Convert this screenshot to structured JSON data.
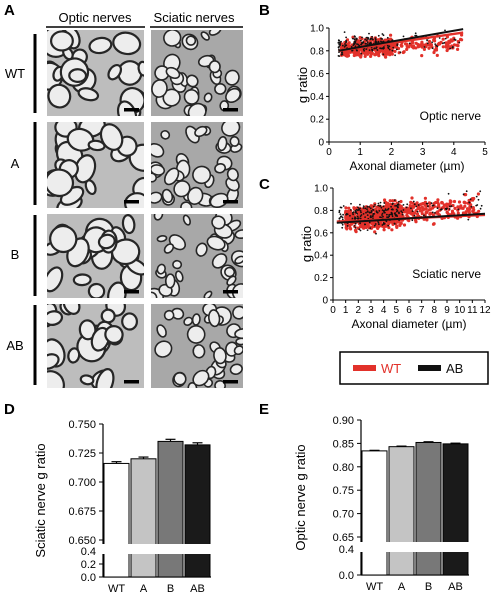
{
  "panel_letters": {
    "A": "A",
    "B": "B",
    "C": "C",
    "D": "D",
    "E": "E"
  },
  "micrographs": {
    "column_headers": [
      "Optic nerves",
      "Sciatic nerves"
    ],
    "row_labels": [
      "WT",
      "A",
      "B",
      "AB"
    ]
  },
  "legend": {
    "entries": [
      {
        "label": "WT",
        "color": "#e2312a"
      },
      {
        "label": "AB",
        "color": "#111111"
      }
    ]
  },
  "colors": {
    "wt_red": "#e2312a",
    "ab_black": "#111111",
    "bar_edge": "#000000"
  },
  "chart_data": [
    {
      "id": "B",
      "type": "scatter",
      "xlabel": "Axonal diameter (µm)",
      "ylabel": "g ratio",
      "annotation": "Optic nerve",
      "xlim": [
        0,
        5
      ],
      "ylim": [
        0,
        1.0
      ],
      "xticks": [
        0,
        1,
        2,
        3,
        4,
        5
      ],
      "yticks": [
        0,
        0.2,
        0.4,
        0.6,
        0.8,
        1.0
      ],
      "ytick_labels": [
        "0",
        "0.2",
        "0.4",
        "0.6",
        "0.8",
        "1.0"
      ],
      "series": [
        {
          "name": "WT",
          "x_range": [
            0.4,
            4.3
          ],
          "y_center": 0.82,
          "y_spread": 0.07,
          "count": 600,
          "trend": [
            [
              0.3,
              0.8
            ],
            [
              4.3,
              0.96
            ]
          ]
        },
        {
          "name": "AB",
          "x_range": [
            0.3,
            4.2
          ],
          "y_center": 0.84,
          "y_spread": 0.08,
          "count": 220,
          "trend": [
            [
              0.3,
              0.8
            ],
            [
              4.3,
              0.99
            ]
          ]
        }
      ]
    },
    {
      "id": "C",
      "type": "scatter",
      "xlabel": "Axonal diameter (µm)",
      "ylabel": "g ratio",
      "annotation": "Sciatic nerve",
      "xlim": [
        0,
        12
      ],
      "ylim": [
        0,
        1.0
      ],
      "xticks": [
        0,
        1,
        2,
        3,
        4,
        5,
        6,
        7,
        8,
        9,
        10,
        11,
        12
      ],
      "yticks": [
        0,
        0.2,
        0.4,
        0.6,
        0.8,
        1.0
      ],
      "ytick_labels": [
        "0",
        "0.2",
        "0.4",
        "0.6",
        "0.8",
        "1.0"
      ],
      "series": [
        {
          "name": "WT",
          "x_range": [
            1,
            11.5
          ],
          "y_center": 0.72,
          "y_spread": 0.09,
          "count": 900,
          "trend": [
            [
              0.3,
              0.7
            ],
            [
              12,
              0.76
            ]
          ]
        },
        {
          "name": "AB",
          "x_range": [
            0.5,
            11.8
          ],
          "y_center": 0.73,
          "y_spread": 0.11,
          "count": 260,
          "trend": [
            [
              0.3,
              0.69
            ],
            [
              12,
              0.77
            ]
          ]
        }
      ]
    },
    {
      "id": "D",
      "type": "bar",
      "ylabel": "Sciatic nerve g ratio",
      "categories": [
        "WT",
        "A",
        "B",
        "AB"
      ],
      "values": [
        0.716,
        0.72,
        0.735,
        0.732
      ],
      "errors": [
        0.0015,
        0.0015,
        0.0018,
        0.0018
      ],
      "fill_colors": [
        "#ffffff",
        "#c4c4c4",
        "#787878",
        "#1a1a1a"
      ],
      "upper_ylim": [
        0.65,
        0.75
      ],
      "upper_ticks": [
        "0.750",
        "0.725",
        "0.700",
        "0.675",
        "0.650"
      ],
      "lower_ylim": [
        0.0,
        0.4
      ],
      "lower_ticks": [
        "0.4",
        "0.2",
        "0.0"
      ],
      "axis_break": true
    },
    {
      "id": "E",
      "type": "bar",
      "ylabel": "Optic nerve g ratio",
      "categories": [
        "WT",
        "A",
        "B",
        "AB"
      ],
      "values": [
        0.834,
        0.843,
        0.852,
        0.849
      ],
      "errors": [
        0.0012,
        0.0012,
        0.0015,
        0.0015
      ],
      "fill_colors": [
        "#ffffff",
        "#c4c4c4",
        "#787878",
        "#1a1a1a"
      ],
      "upper_ylim": [
        0.65,
        0.9
      ],
      "upper_ticks": [
        "0.90",
        "0.85",
        "0.80",
        "0.75",
        "0.70",
        "0.65"
      ],
      "lower_ylim": [
        0.0,
        0.4
      ],
      "lower_ticks": [
        "0.4",
        "0.0"
      ],
      "axis_break": true
    }
  ]
}
